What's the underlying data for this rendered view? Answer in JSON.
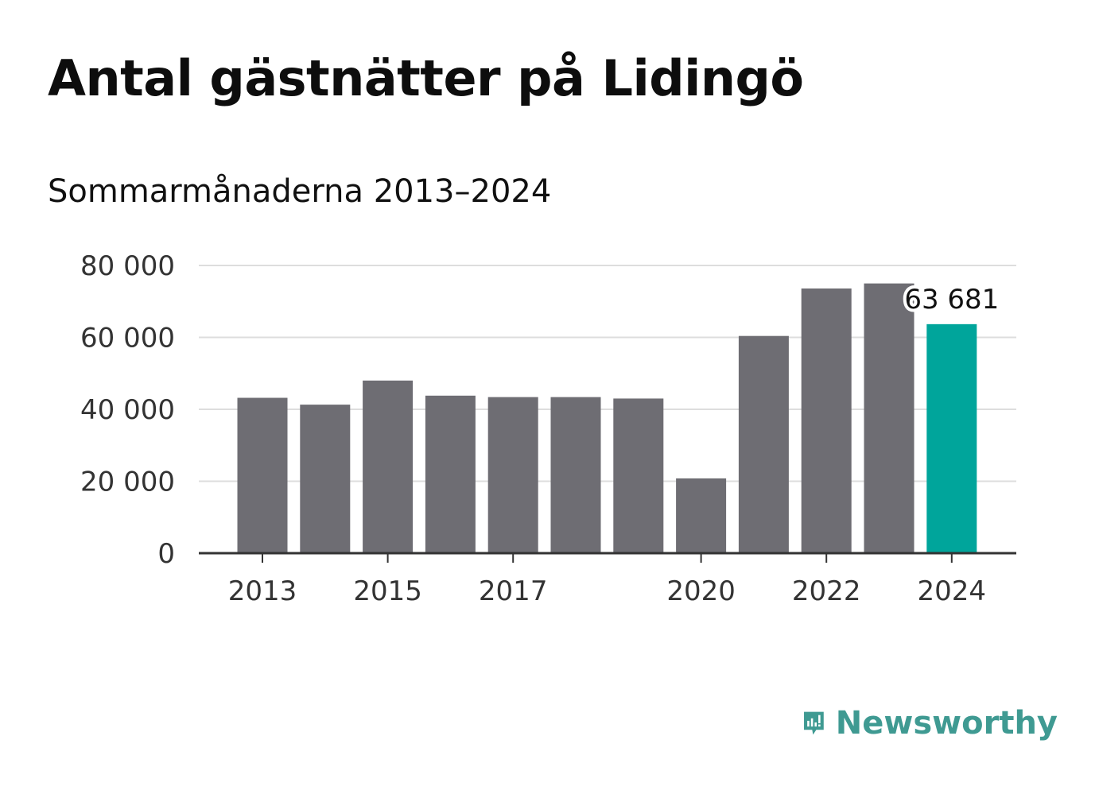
{
  "title": "Antal gästnätter på Lidingö",
  "subtitle": "Sommarmånaderna 2013–2024",
  "brand": {
    "name": "Newsworthy",
    "icon": "newsworthy-logo-icon",
    "color": "#3f9a92"
  },
  "colors": {
    "bar": "#6e6d73",
    "highlight": "#00a59b",
    "grid": "#dddddd",
    "axis": "#333333"
  },
  "chart_data": {
    "type": "bar",
    "categories": [
      "2013",
      "2014",
      "2015",
      "2016",
      "2017",
      "2018",
      "2019",
      "2020",
      "2021",
      "2022",
      "2023",
      "2024"
    ],
    "values": [
      43200,
      41300,
      48000,
      43800,
      43400,
      43400,
      43000,
      20800,
      60400,
      73600,
      75000,
      63681
    ],
    "highlight_index": 11,
    "x_tick_labels": [
      "2013",
      "2015",
      "2017",
      "2020",
      "2022",
      "2024"
    ],
    "y_ticks": [
      0,
      20000,
      40000,
      60000,
      80000
    ],
    "y_tick_labels": [
      "0",
      "20 000",
      "40 000",
      "60 000",
      "80 000"
    ],
    "ylim": [
      0,
      80000
    ],
    "grid": true,
    "data_labels": [
      {
        "index": 11,
        "text": "63 681"
      }
    ],
    "title": "Antal gästnätter på Lidingö",
    "subtitle": "Sommarmånaderna 2013–2024",
    "xlabel": "",
    "ylabel": ""
  }
}
